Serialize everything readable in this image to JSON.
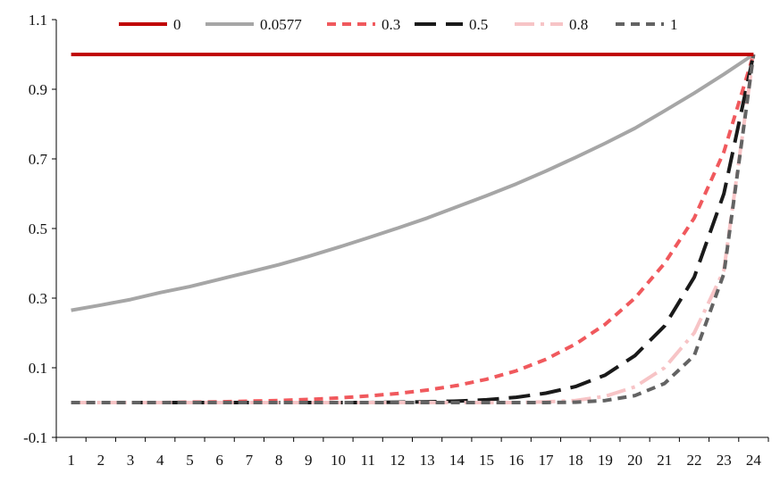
{
  "chart_data": {
    "type": "line",
    "title": "",
    "xlabel": "",
    "ylabel": "",
    "x": [
      1,
      2,
      3,
      4,
      5,
      6,
      7,
      8,
      9,
      10,
      11,
      12,
      13,
      14,
      15,
      16,
      17,
      18,
      19,
      20,
      21,
      22,
      23,
      24
    ],
    "ylim": [
      -0.1,
      1.1
    ],
    "yticks": [
      -0.1,
      0.1,
      0.3,
      0.5,
      0.7,
      0.9,
      1.1
    ],
    "ytick_labels": [
      "-0.1",
      "0.1",
      "0.3",
      "0.5",
      "0.7",
      "0.9",
      "1.1"
    ],
    "xtick_labels": [
      "1",
      "2",
      "3",
      "4",
      "5",
      "6",
      "7",
      "8",
      "9",
      "10",
      "11",
      "12",
      "13",
      "14",
      "15",
      "16",
      "17",
      "18",
      "19",
      "20",
      "21",
      "22",
      "23",
      "24"
    ],
    "grid": false,
    "legend_position": "top",
    "series": [
      {
        "name": "0",
        "color": "#c00000",
        "style": "solid",
        "values": [
          1,
          1,
          1,
          1,
          1,
          1,
          1,
          1,
          1,
          1,
          1,
          1,
          1,
          1,
          1,
          1,
          1,
          1,
          1,
          1,
          1,
          1,
          1,
          1
        ]
      },
      {
        "name": "0.0577",
        "color": "#a6a6a6",
        "style": "solid",
        "values": [
          0.265,
          0.28,
          0.296,
          0.316,
          0.333,
          0.354,
          0.375,
          0.396,
          0.42,
          0.446,
          0.473,
          0.501,
          0.53,
          0.562,
          0.594,
          0.628,
          0.665,
          0.704,
          0.745,
          0.788,
          0.838,
          0.889,
          0.943,
          1.0
        ]
      },
      {
        "name": "0.3",
        "color": "#f0595d",
        "style": "dash",
        "values": [
          0.0,
          0.0,
          0.0,
          0.0,
          0.001,
          0.002,
          0.004,
          0.006,
          0.009,
          0.013,
          0.019,
          0.026,
          0.036,
          0.049,
          0.067,
          0.091,
          0.124,
          0.168,
          0.225,
          0.3,
          0.4,
          0.53,
          0.72,
          1.0
        ]
      },
      {
        "name": "0.5",
        "color": "#1a1a1a",
        "style": "longdash",
        "values": [
          0.0,
          0.0,
          0.0,
          0.0,
          0.0,
          0.0,
          0.0,
          0.0,
          0.0,
          0.0,
          0.0,
          0.001,
          0.002,
          0.004,
          0.008,
          0.015,
          0.027,
          0.046,
          0.079,
          0.135,
          0.22,
          0.36,
          0.6,
          1.0
        ]
      },
      {
        "name": "0.8",
        "color": "#f7c4c6",
        "style": "dashdot",
        "values": [
          0.0,
          0.0,
          0.0,
          0.0,
          0.0,
          0.0,
          0.0,
          0.0,
          0.0,
          0.0,
          0.0,
          0.0,
          0.0,
          0.0,
          0.0,
          0.0,
          0.002,
          0.006,
          0.018,
          0.045,
          0.1,
          0.2,
          0.38,
          1.0
        ]
      },
      {
        "name": "1",
        "color": "#636363",
        "style": "dash",
        "values": [
          0.0,
          0.0,
          0.0,
          0.0,
          0.0,
          0.0,
          0.0,
          0.0,
          0.0,
          0.0,
          0.0,
          0.0,
          0.0,
          0.0,
          0.0,
          0.0,
          0.0,
          0.001,
          0.006,
          0.02,
          0.055,
          0.135,
          0.37,
          1.0
        ]
      }
    ]
  }
}
